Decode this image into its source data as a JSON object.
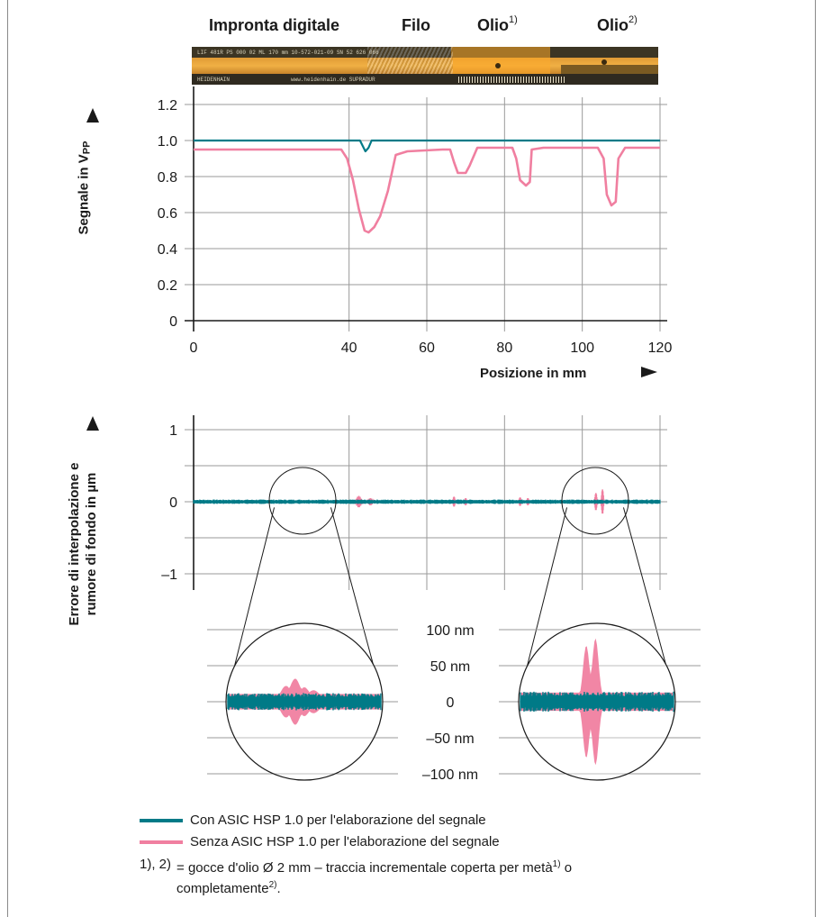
{
  "strip": {
    "headers": [
      {
        "label": "Impronta digitale",
        "sup": ""
      },
      {
        "label": "Filo",
        "sup": ""
      },
      {
        "label": "Olio",
        "sup": "1)"
      },
      {
        "label": "Olio",
        "sup": "2)"
      }
    ],
    "texts": [
      "LIF 481R   PS 000 02   ML 170 mm   10-572-021-09   SN 52 626 066",
      "HEIDENHAIN",
      "www.heidenhain.de  SUPRADUR"
    ]
  },
  "chart_data": [
    {
      "type": "line",
      "ylabel": "Segnale in V",
      "ylabel_sub": "PP",
      "xlabel": "Posizione in mm",
      "xlim": [
        0,
        120
      ],
      "ylim": [
        0,
        1.2
      ],
      "xticks": [
        "0",
        "40",
        "60",
        "80",
        "100",
        "120"
      ],
      "xtick_values": [
        0,
        40,
        60,
        80,
        100,
        120
      ],
      "yticks": [
        "0",
        "0.2",
        "0.4",
        "0.6",
        "0.8",
        "1.0",
        "1.2"
      ],
      "ytick_values": [
        0,
        0.2,
        0.4,
        0.6,
        0.8,
        1.0,
        1.2
      ],
      "grid": true,
      "series": [
        {
          "name": "Con ASIC HSP 1.0 per l'elaborazione del segnale",
          "color": "#007a87",
          "x": [
            0,
            42.8,
            43.5,
            44.2,
            45.0,
            45.8,
            120
          ],
          "y": [
            1.0,
            1.0,
            0.97,
            0.94,
            0.96,
            1.0,
            1.0
          ]
        },
        {
          "name": "Senza ASIC HSP 1.0 per l'elaborazione del segnale",
          "color": "#f07fa0",
          "x": [
            0,
            23,
            38,
            39.5,
            41,
            42.5,
            44,
            45,
            46.5,
            48,
            50,
            52,
            55,
            64,
            66,
            67,
            68,
            70,
            71,
            73,
            80,
            82,
            83,
            84,
            85.5,
            86.5,
            87,
            90,
            104,
            105.5,
            106.3,
            107.5,
            108.6,
            109.3,
            111,
            120
          ],
          "y": [
            0.95,
            0.95,
            0.95,
            0.9,
            0.78,
            0.62,
            0.5,
            0.49,
            0.52,
            0.58,
            0.72,
            0.92,
            0.94,
            0.95,
            0.95,
            0.88,
            0.82,
            0.82,
            0.86,
            0.96,
            0.96,
            0.96,
            0.9,
            0.78,
            0.75,
            0.77,
            0.95,
            0.96,
            0.96,
            0.9,
            0.7,
            0.64,
            0.66,
            0.9,
            0.96,
            0.96
          ]
        }
      ]
    },
    {
      "type": "line",
      "ylabel_line1": "Errore di interpolazione e",
      "ylabel_line2": "rumore di fondo in µm",
      "xlim": [
        0,
        120
      ],
      "ylim": [
        -1,
        1
      ],
      "yticks": [
        "1",
        "0",
        "–1"
      ],
      "ytick_values": [
        1,
        0,
        -1
      ],
      "grid": true,
      "series": [
        {
          "name": "Con ASIC HSP 1.0 per l'elaborazione del segnale",
          "color": "#007a87",
          "noise_amplitude": 0.03
        },
        {
          "name": "Senza ASIC HSP 1.0 per l'elaborazione del segnale",
          "color": "#f07fa0",
          "bursts": [
            {
              "center": 42.5,
              "width": 1.4,
              "amplitude": 0.08
            },
            {
              "center": 45.5,
              "width": 1.2,
              "amplitude": 0.05
            },
            {
              "center": 67,
              "width": 0.5,
              "amplitude": 0.07
            },
            {
              "center": 70,
              "width": 0.5,
              "amplitude": 0.05
            },
            {
              "center": 84,
              "width": 0.5,
              "amplitude": 0.06
            },
            {
              "center": 86,
              "width": 0.5,
              "amplitude": 0.05
            },
            {
              "center": 103.5,
              "width": 0.5,
              "amplitude": 0.12
            },
            {
              "center": 105.2,
              "width": 0.5,
              "amplitude": 0.17
            }
          ]
        }
      ]
    },
    {
      "type": "line",
      "zoom": true,
      "yticks": [
        "100 nm",
        "50 nm",
        "0",
        "–50 nm",
        "–100 nm"
      ],
      "ytick_values": [
        100,
        50,
        0,
        -50,
        -100
      ],
      "panels": [
        {
          "name": "zoom-1",
          "noise_amplitude_nm": 12,
          "pink_envelope": [
            {
              "pos": 0.38,
              "width": 0.05,
              "amplitude": 22
            },
            {
              "pos": 0.44,
              "width": 0.05,
              "amplitude": 32
            },
            {
              "pos": 0.5,
              "width": 0.05,
              "amplitude": 20
            },
            {
              "pos": 0.56,
              "width": 0.06,
              "amplitude": 16
            }
          ]
        },
        {
          "name": "zoom-2",
          "noise_amplitude_nm": 14,
          "pink_envelope": [
            {
              "pos": 0.43,
              "width": 0.03,
              "amplitude": 78
            },
            {
              "pos": 0.49,
              "width": 0.03,
              "amplitude": 88
            },
            {
              "pos": 0.46,
              "width": 0.05,
              "amplitude": 38
            }
          ]
        }
      ]
    }
  ],
  "legend": [
    {
      "label": "Con ASIC HSP 1.0 per l'elaborazione del segnale",
      "color": "#007a87"
    },
    {
      "label": "Senza ASIC HSP 1.0 per l'elaborazione del segnale",
      "color": "#f07fa0"
    }
  ],
  "note": {
    "prefix": "1), 2)",
    "text_before": "= gocce d'olio Ø 2 mm – traccia incrementale coperta per metà",
    "sup1": "1)",
    "text_between": " o",
    "text_after": "completamente",
    "sup2": "2)",
    "tail": "."
  }
}
